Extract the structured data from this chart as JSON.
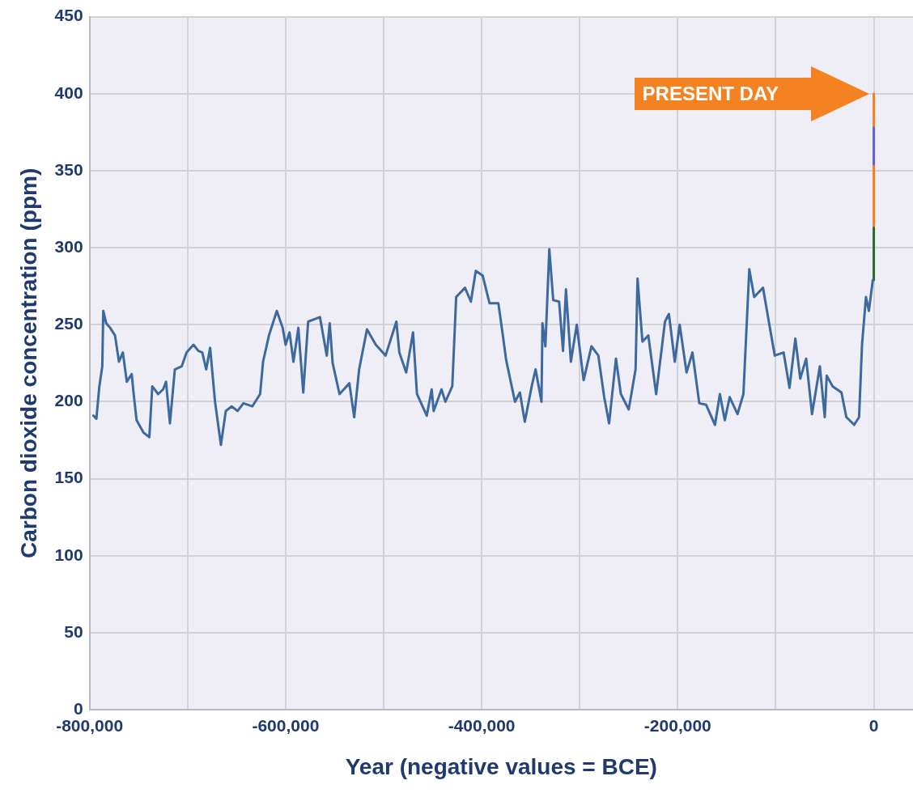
{
  "chart_data": {
    "type": "line",
    "xlabel": "Year (negative values = BCE)",
    "ylabel": "Carbon dioxide concentration (ppm)",
    "xlim": [
      -800000,
      40000
    ],
    "xticks": [
      {
        "value": -800000,
        "label": "-800,000"
      },
      {
        "value": -700000,
        "label": null
      },
      {
        "value": -600000,
        "label": "-600,000"
      },
      {
        "value": -500000,
        "label": null
      },
      {
        "value": -400000,
        "label": "-400,000"
      },
      {
        "value": -300000,
        "label": null
      },
      {
        "value": -200000,
        "label": "-200,000"
      },
      {
        "value": -100000,
        "label": null
      },
      0
    ],
    "ylim": [
      0,
      450
    ],
    "yticks": [
      0,
      50,
      100,
      150,
      200,
      250,
      300,
      350,
      400,
      450
    ],
    "grid": true,
    "marker": "none",
    "line_style": "solid",
    "annotations": [
      "PRESENT DAY"
    ],
    "series": [
      {
        "color": "#3d6a9e",
        "x": [
          -796000,
          -793000,
          -790000,
          -787000,
          -786000,
          -783000,
          -779000,
          -774000,
          -770000,
          -766000,
          -762000,
          -757000,
          -755000,
          -752000,
          -745000,
          -739000,
          -736000,
          -730000,
          -725000,
          -722000,
          -718000,
          -713000,
          -706000,
          -701000,
          -694000,
          -689000,
          -685000,
          -681000,
          -677000,
          -672000,
          -666000,
          -661000,
          -655000,
          -649000,
          -643000,
          -634000,
          -626000,
          -623000,
          -617000,
          -609000,
          -603000,
          -600000,
          -596000,
          -592000,
          -587000,
          -582000,
          -577000,
          -565000,
          -558000,
          -555000,
          -552000,
          -545000,
          -535000,
          -530000,
          -525000,
          -517000,
          -508000,
          -498000,
          -487000,
          -484000,
          -477000,
          -470000,
          -466000,
          -456000,
          -451000,
          -449000,
          -441000,
          -437000,
          -430000,
          -426000,
          -417000,
          -411000,
          -406000,
          -399000,
          -392000,
          -383000,
          -379000,
          -375000,
          -366000,
          -361000,
          -356000,
          -349000,
          -345000,
          -339000,
          -338000,
          -335000,
          -331000,
          -327000,
          -321000,
          -317000,
          -314000,
          -309000,
          -303000,
          -296000,
          -288000,
          -281000,
          -275000,
          -270000,
          -263000,
          -258000,
          -250000,
          -243000,
          -241000,
          -236000,
          -230000,
          -222000,
          -213000,
          -209000,
          -203000,
          -198000,
          -191000,
          -185000,
          -178000,
          -171000,
          -162000,
          -157000,
          -152000,
          -147000,
          -139000,
          -133000,
          -127000,
          -122000,
          -113000,
          -106000,
          -101000,
          -92000,
          -86000,
          -80000,
          -75000,
          -69000,
          -63000,
          -55000,
          -50000,
          -48000,
          -42000,
          -33000,
          -28000,
          -20000,
          -15000,
          -12000,
          -8000,
          -5000,
          -1000
        ],
        "values": [
          191,
          189,
          210,
          223,
          259,
          251,
          248,
          243,
          226,
          232,
          213,
          218,
          205,
          188,
          180,
          177,
          210,
          205,
          208,
          213,
          186,
          221,
          223,
          232,
          237,
          233,
          232,
          221,
          235,
          200,
          172,
          194,
          197,
          194,
          199,
          197,
          205,
          226,
          243,
          259,
          248,
          237,
          245,
          226,
          248,
          206,
          252,
          255,
          230,
          251,
          225,
          205,
          212,
          190,
          221,
          247,
          237,
          230,
          252,
          232,
          219,
          245,
          205,
          191,
          208,
          194,
          208,
          200,
          210,
          268,
          274,
          265,
          285,
          282,
          264,
          264,
          246,
          227,
          200,
          206,
          187,
          210,
          221,
          200,
          251,
          236,
          299,
          266,
          265,
          233,
          273,
          226,
          250,
          214,
          236,
          230,
          203,
          186,
          228,
          205,
          195,
          221,
          280,
          239,
          243,
          205,
          252,
          257,
          226,
          250,
          219,
          232,
          199,
          198,
          185,
          205,
          188,
          203,
          192,
          205,
          286,
          268,
          274,
          248,
          230,
          232,
          209,
          241,
          215,
          228,
          192,
          223,
          190,
          217,
          210,
          206,
          190,
          185,
          190,
          237,
          268,
          259,
          279
        ]
      },
      {
        "color": "#2d6a2d",
        "x": [
          0,
          0
        ],
        "values": [
          279,
          313
        ]
      },
      {
        "color": "#f58220",
        "x": [
          0,
          0
        ],
        "values": [
          313,
          353
        ]
      },
      {
        "color": "#5b63d6",
        "x": [
          0,
          0
        ],
        "values": [
          353,
          378
        ]
      },
      {
        "color": "#f58220",
        "x": [
          0,
          0
        ],
        "values": [
          378,
          400
        ]
      }
    ]
  }
}
